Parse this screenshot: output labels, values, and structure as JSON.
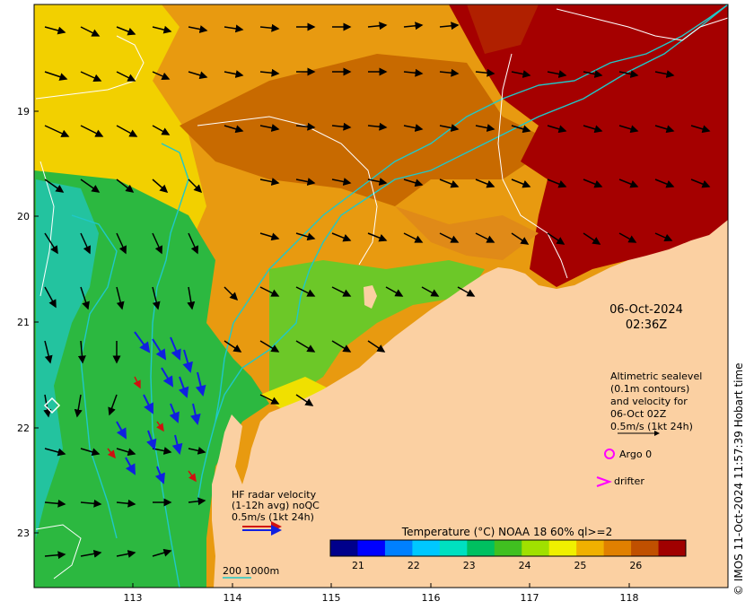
{
  "map": {
    "x_ticks": [
      "113",
      "114",
      "115",
      "116",
      "117",
      "118"
    ],
    "y_ticks": [
      "19",
      "20",
      "21",
      "22",
      "23"
    ],
    "date": "06-Oct-2024",
    "time": "02:36Z",
    "credit": "© IMOS 11-Oct-2024 11:57:39 Hobart time",
    "colors": {
      "land": "#fbd0a2",
      "bathy": "#20c8c8",
      "sla": "#ffffff",
      "hf_radar": "#1020e0",
      "argo": "#ff00ff",
      "drifter": "#ff00ff"
    }
  },
  "legend": {
    "altimetry": [
      "Altimetric sealevel",
      "(0.1m contours)",
      "and velocity for",
      "06-Oct 02Z",
      "0.5m/s (1kt 24h)"
    ],
    "argo": "Argo 0",
    "drifter": "drifter",
    "hf_radar": [
      "HF radar velocity",
      "(1-12h avg) noQC",
      "0.5m/s (1kt 24h)"
    ],
    "bathy": "200  1000m"
  },
  "colorbar": {
    "title": "Temperature (°C) NOAA 18 60% ql>=2",
    "min": 20.5,
    "max": 26.9,
    "ticks": [
      "21",
      "22",
      "23",
      "24",
      "25",
      "26"
    ],
    "colors": [
      "#00008b",
      "#0000ff",
      "#0080ff",
      "#00c8ff",
      "#00e0c0",
      "#00c060",
      "#40c020",
      "#a0e000",
      "#f0f000",
      "#f0b000",
      "#e08000",
      "#c05000",
      "#a00000"
    ]
  }
}
